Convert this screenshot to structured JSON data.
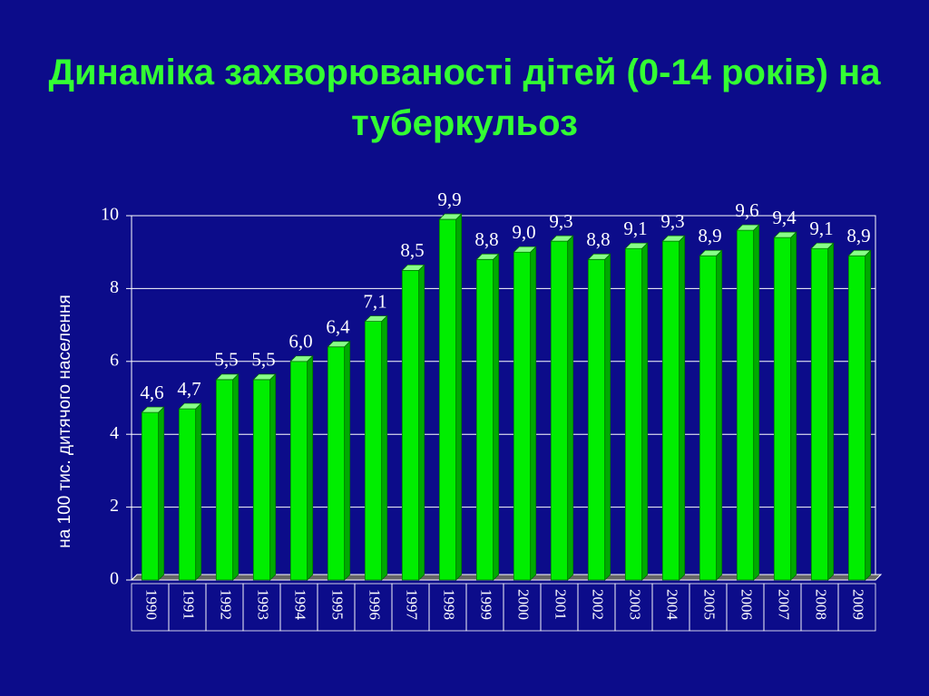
{
  "chart_data": {
    "type": "bar",
    "title": "Динаміка захворюваності дітей (0-14 років) на туберкульоз",
    "y_label": "на 100 тис. дитячого населення",
    "categories": [
      "1990",
      "1991",
      "1992",
      "1993",
      "1994",
      "1995",
      "1996",
      "1997",
      "1998",
      "1999",
      "2000",
      "2001",
      "2002",
      "2003",
      "2004",
      "2005",
      "2006",
      "2007",
      "2008",
      "2009"
    ],
    "values": [
      4.6,
      4.7,
      5.5,
      5.5,
      6.0,
      6.4,
      7.1,
      8.5,
      9.9,
      8.8,
      9.0,
      9.3,
      8.8,
      9.1,
      9.3,
      8.9,
      9.6,
      9.4,
      9.1,
      8.9
    ],
    "value_labels": [
      "4,6",
      "4,7",
      "5,5",
      "5,5",
      "6,0",
      "6,4",
      "7,1",
      "8,5",
      "9,9",
      "8,8",
      "9,0",
      "9,3",
      "8,8",
      "9,1",
      "9,3",
      "8,9",
      "9,6",
      "9,4",
      "9,1",
      "8,9"
    ],
    "color": "#00ee00",
    "ylim": [
      0,
      10
    ],
    "yticks": [
      0,
      2,
      4,
      6,
      8,
      10
    ],
    "grid": true
  }
}
